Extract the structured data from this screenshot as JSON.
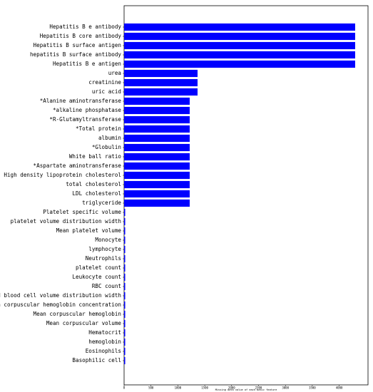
{
  "chart_data": {
    "type": "barh",
    "xlabel": "Missing data value of each basic feature",
    "categories": [
      "Hepatitis B e antibody",
      "Hepatitis B core antibody",
      "Hepatitis B surface antigen",
      "hepatitis B surface antibody",
      "Hepatitis B e antigen",
      "urea",
      "creatinine",
      "uric acid",
      "*Alanine aminotransferase",
      "*alkaline phosphatase",
      "*R-Glutamyltransferase",
      "*Total protein",
      "albumin",
      "*Globulin",
      "White ball ratio",
      "*Aspartate aminotransferase",
      "High density lipoprotein cholesterol",
      "total cholesterol",
      "LDL cholesterol",
      "triglyceride",
      "Platelet specific volume",
      "platelet volume distribution width",
      "Mean platelet volume",
      "Monocyte",
      "lymphocyte",
      "Neutrophils",
      "platelet count",
      "Leukocyte count",
      "RBC count",
      "Red blood cell volume distribution width",
      "Mean corpuscular hemoglobin concentration",
      "Mean corpuscular hemoglobin",
      "Mean corpuscular volume",
      "Hematocrit",
      "hemoglobin",
      "Eosinophils",
      "Basophilic cell"
    ],
    "values": [
      4297,
      4297,
      4297,
      4297,
      4297,
      1366,
      1366,
      1366,
      1220,
      1220,
      1220,
      1220,
      1220,
      1220,
      1220,
      1220,
      1220,
      1220,
      1220,
      1220,
      20,
      20,
      20,
      20,
      20,
      20,
      20,
      20,
      20,
      20,
      20,
      20,
      20,
      20,
      20,
      20,
      20
    ],
    "color": "#0000ff",
    "xlim": [
      0,
      4536
    ],
    "xticks": [
      0,
      500,
      1000,
      1500,
      2000,
      2500,
      3000,
      3500,
      4000
    ]
  }
}
